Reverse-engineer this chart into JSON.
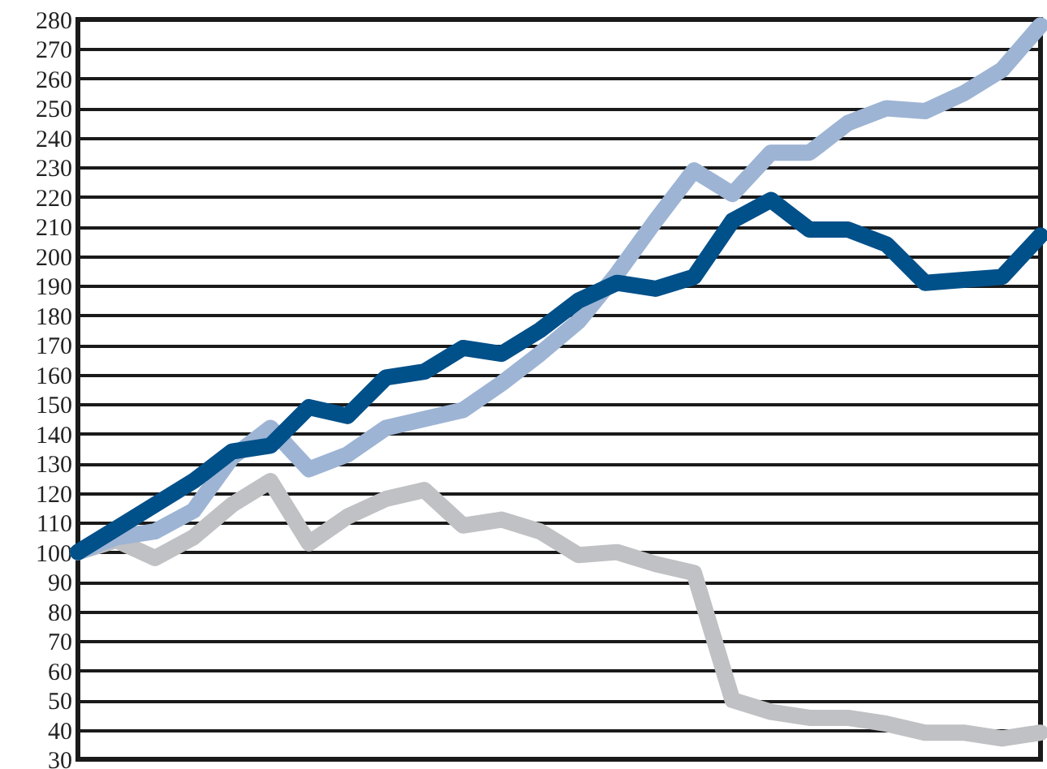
{
  "chart_data": {
    "type": "line",
    "categories": [
      null,
      null,
      null,
      null,
      null,
      null,
      null,
      null,
      null,
      null,
      null,
      null,
      null,
      null,
      null,
      null,
      null,
      null,
      null,
      null,
      null,
      null,
      null,
      null,
      null,
      null
    ],
    "series": [
      {
        "color": "#c0c1c4",
        "values": [
          100,
          104,
          98,
          105,
          116,
          124,
          103,
          112,
          118,
          121,
          109,
          111,
          107,
          99,
          100,
          96,
          93,
          50,
          46,
          44,
          44,
          42,
          39,
          39,
          37,
          39
        ]
      },
      {
        "color": "#9db4d4",
        "values": [
          100,
          105,
          107,
          114,
          132,
          142,
          128,
          133,
          142,
          145,
          148,
          157,
          167,
          178,
          194,
          212,
          229,
          221,
          235,
          235,
          245,
          250,
          249,
          255,
          263,
          278
        ]
      },
      {
        "color": "#00508a",
        "values": [
          100,
          108,
          116,
          124,
          134,
          136,
          149,
          146,
          159,
          161,
          169,
          167,
          175,
          185,
          191,
          189,
          193,
          212,
          219,
          209,
          209,
          204,
          191,
          192,
          193,
          207
        ]
      }
    ],
    "ylim": [
      30,
      280
    ],
    "yticks": [
      30,
      40,
      50,
      60,
      70,
      80,
      90,
      100,
      110,
      120,
      130,
      140,
      150,
      160,
      170,
      180,
      190,
      200,
      210,
      220,
      230,
      240,
      250,
      260,
      270,
      280
    ],
    "grid": "y",
    "tick_labels": "y",
    "line_style": "solid"
  }
}
